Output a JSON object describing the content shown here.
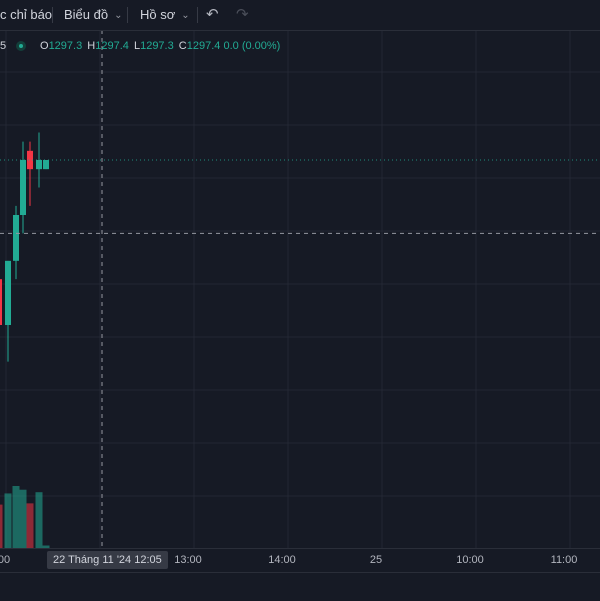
{
  "toolbar": {
    "indicators_label": "c chỉ báo",
    "chart_label": "Biểu đồ",
    "profile_label": "Hồ sơ",
    "undo_icon": "undo-icon",
    "redo_icon": "redo-icon"
  },
  "legend": {
    "symbol_fragment": "5",
    "o_label": "O",
    "o_value": "1297.3",
    "h_label": "H",
    "h_value": "1297.4",
    "l_label": "L",
    "l_value": "1297.3",
    "c_label": "C",
    "c_value": "1297.4",
    "change": "0.0 (0.00%)"
  },
  "xaxis": {
    "ticks": [
      "00",
      "13:00",
      "14:00",
      "25",
      "10:00",
      "11:00"
    ],
    "cursor_label": "22 Tháng 11 '24   12:05"
  },
  "colors": {
    "background": "#161a25",
    "grid": "#232733",
    "up": "#22ab94",
    "down": "#f23645",
    "crosshair": "#9598a1",
    "last_price_line": "#22ab94"
  },
  "chart_data": {
    "type": "candlestick",
    "candles": [
      {
        "open": 1296.1,
        "high": 1296.6,
        "low": 1295.3,
        "close": 1295.6
      },
      {
        "open": 1295.6,
        "high": 1296.3,
        "low": 1295.2,
        "close": 1296.3
      },
      {
        "open": 1296.3,
        "high": 1296.9,
        "low": 1296.1,
        "close": 1296.8
      },
      {
        "open": 1296.8,
        "high": 1297.6,
        "low": 1296.6,
        "close": 1297.4
      },
      {
        "open": 1297.5,
        "high": 1297.6,
        "low": 1296.9,
        "close": 1297.3
      },
      {
        "open": 1297.3,
        "high": 1297.7,
        "low": 1297.1,
        "close": 1297.4
      },
      {
        "open": 1297.3,
        "high": 1297.4,
        "low": 1297.3,
        "close": 1297.4
      }
    ],
    "volume": [
      70,
      88,
      100,
      94,
      72,
      90,
      4
    ],
    "last_price": 1297.4,
    "crosshair_price": 1296.6
  }
}
